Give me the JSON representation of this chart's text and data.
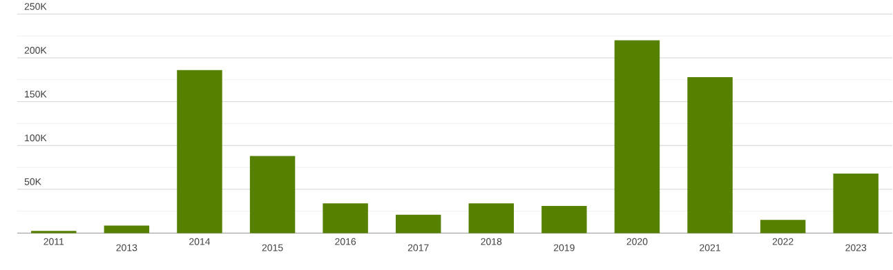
{
  "chart_data": {
    "type": "bar",
    "categories": [
      "2011",
      "2013",
      "2014",
      "2015",
      "2016",
      "2017",
      "2018",
      "2019",
      "2020",
      "2021",
      "2022",
      "2023"
    ],
    "values": [
      2400,
      8600,
      186000,
      88000,
      34000,
      21000,
      34000,
      31000,
      220000,
      178000,
      15000,
      68000
    ],
    "color": "#558000",
    "ylim": [
      0,
      250000
    ],
    "yticks": [
      {
        "value": 25000,
        "label": null
      },
      {
        "value": 50000,
        "label": "50K"
      },
      {
        "value": 75000,
        "label": null
      },
      {
        "value": 100000,
        "label": "100K"
      },
      {
        "value": 125000,
        "label": null
      },
      {
        "value": 150000,
        "label": "150K"
      },
      {
        "value": 175000,
        "label": null
      },
      {
        "value": 200000,
        "label": "200K"
      },
      {
        "value": 225000,
        "label": null
      },
      {
        "value": 250000,
        "label": "250K"
      }
    ],
    "grid": "y"
  }
}
